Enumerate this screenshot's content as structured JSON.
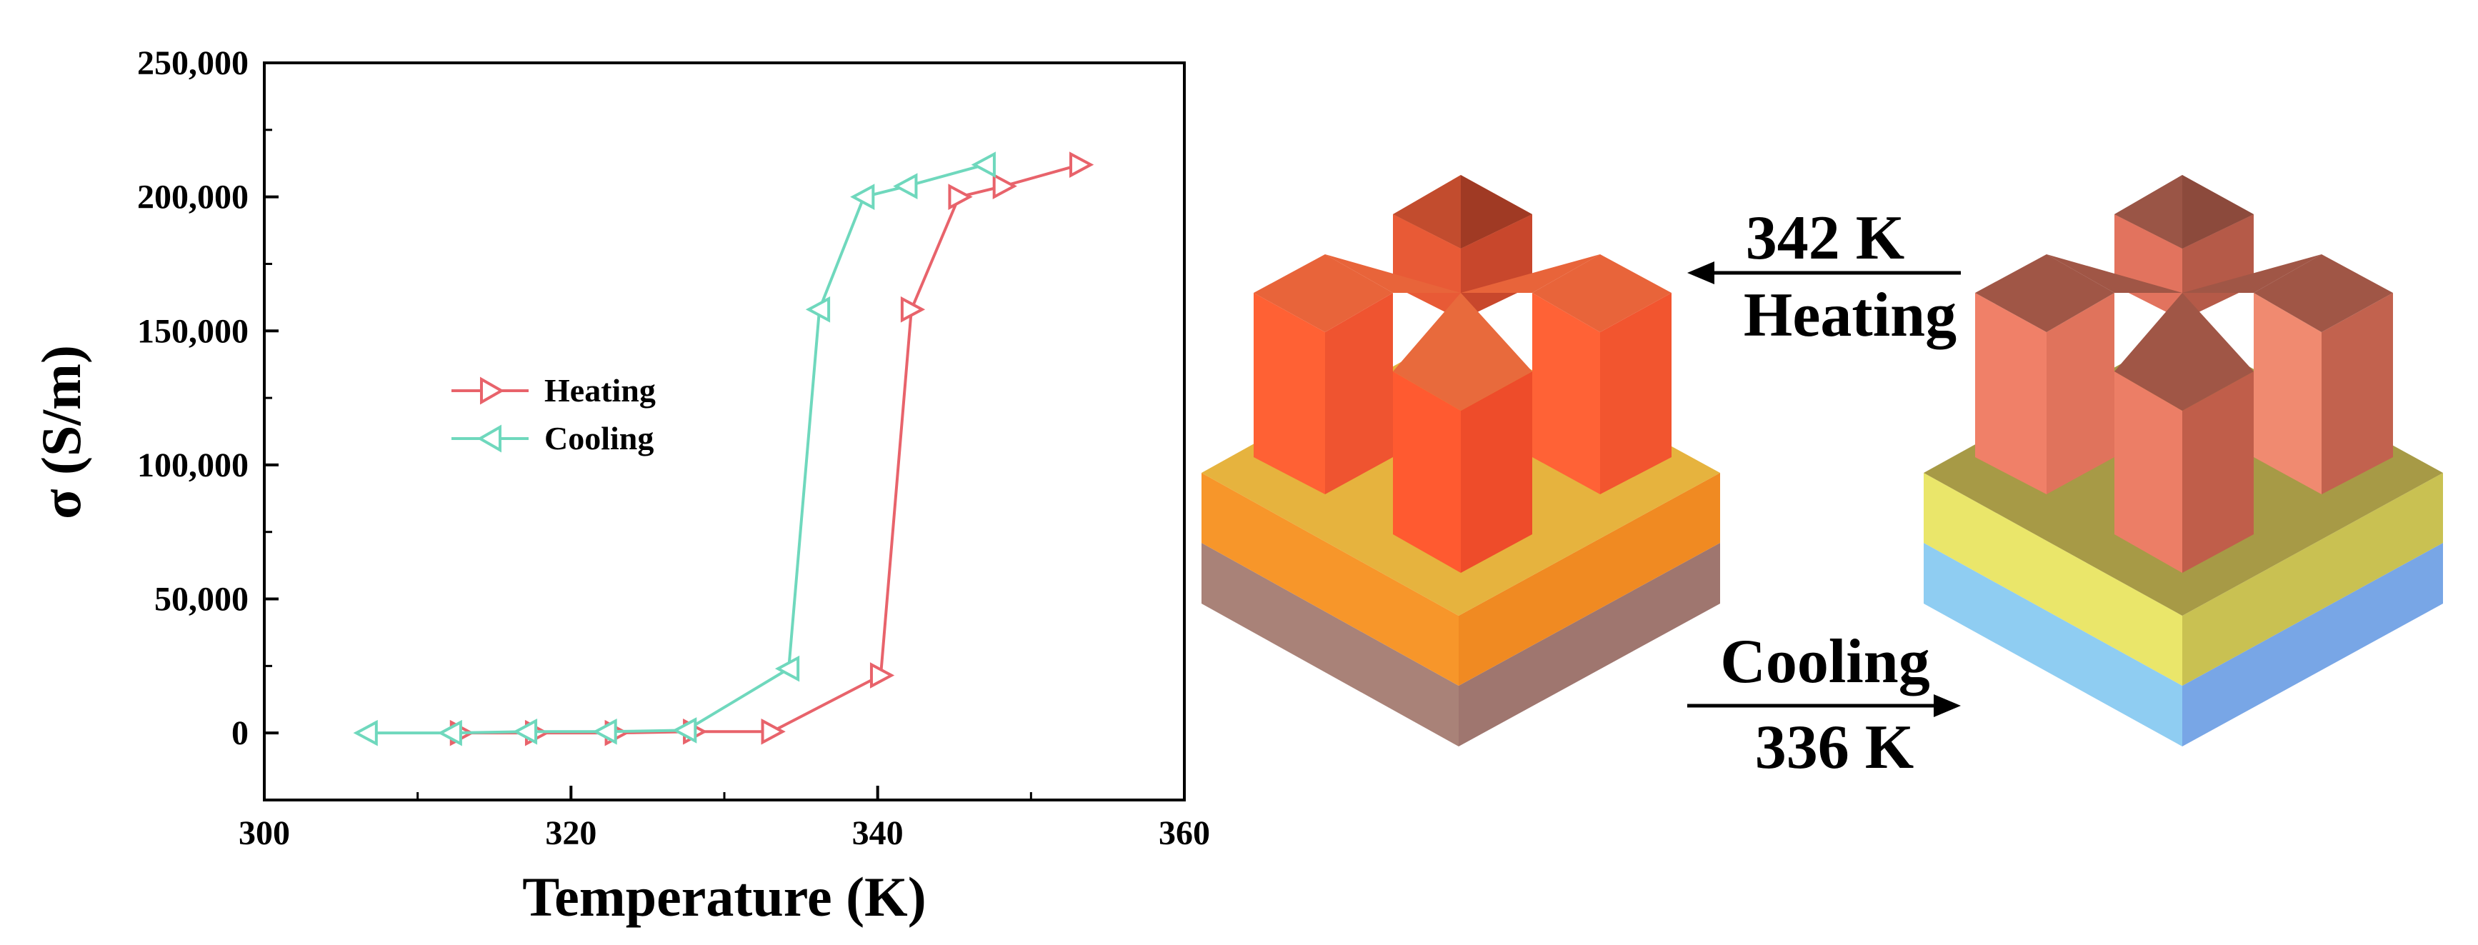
{
  "chart_data": {
    "type": "line",
    "xlabel": "Temperature (K)",
    "ylabel": "σ (S/m)",
    "xlim": [
      300,
      360
    ],
    "ylim": [
      -25000,
      250000
    ],
    "xticks": [
      300,
      320,
      340,
      360
    ],
    "xtick_labels": [
      "300",
      "320",
      "340",
      "360"
    ],
    "yticks": [
      0,
      50000,
      100000,
      150000,
      200000,
      250000
    ],
    "ytick_labels": [
      "0",
      "50,000",
      "100,000",
      "150,000",
      "200,000",
      "250,000"
    ],
    "grid": false,
    "legend_position": "center-left",
    "series": [
      {
        "name": "Heating",
        "color": "#e8636b",
        "marker": "triangle-right",
        "x": [
          312.8,
          317.7,
          322.9,
          328,
          333.1,
          340.2,
          342.2,
          345.3,
          348.2,
          353.2
        ],
        "y": [
          0,
          0,
          0,
          500,
          500,
          21500,
          158000,
          200000,
          204000,
          212000
        ]
      },
      {
        "name": "Cooling",
        "color": "#6fd8bd",
        "marker": "triangle-left",
        "x": [
          306.7,
          312.2,
          317.1,
          322.3,
          327.5,
          334.2,
          336.2,
          339.1,
          341.9,
          347
        ],
        "y": [
          0,
          0,
          500,
          500,
          1000,
          24000,
          158000,
          200000,
          204000,
          212000
        ]
      }
    ]
  },
  "diagram": {
    "upper_arrow": {
      "line1": "342 K",
      "line2": "Heating"
    },
    "lower_arrow": {
      "line1": "Cooling",
      "line2": "336 K"
    },
    "left_state_colors": {
      "pillars": "#ff5a32",
      "tops": "#e8623a",
      "layer_mid": "#f7962a",
      "layer_base": "#a98278"
    },
    "right_state_colors": {
      "pillars": "#f08068",
      "tops": "#a05646",
      "layer_mid": "#eae66a",
      "layer_base": "#8fcdf2"
    }
  }
}
